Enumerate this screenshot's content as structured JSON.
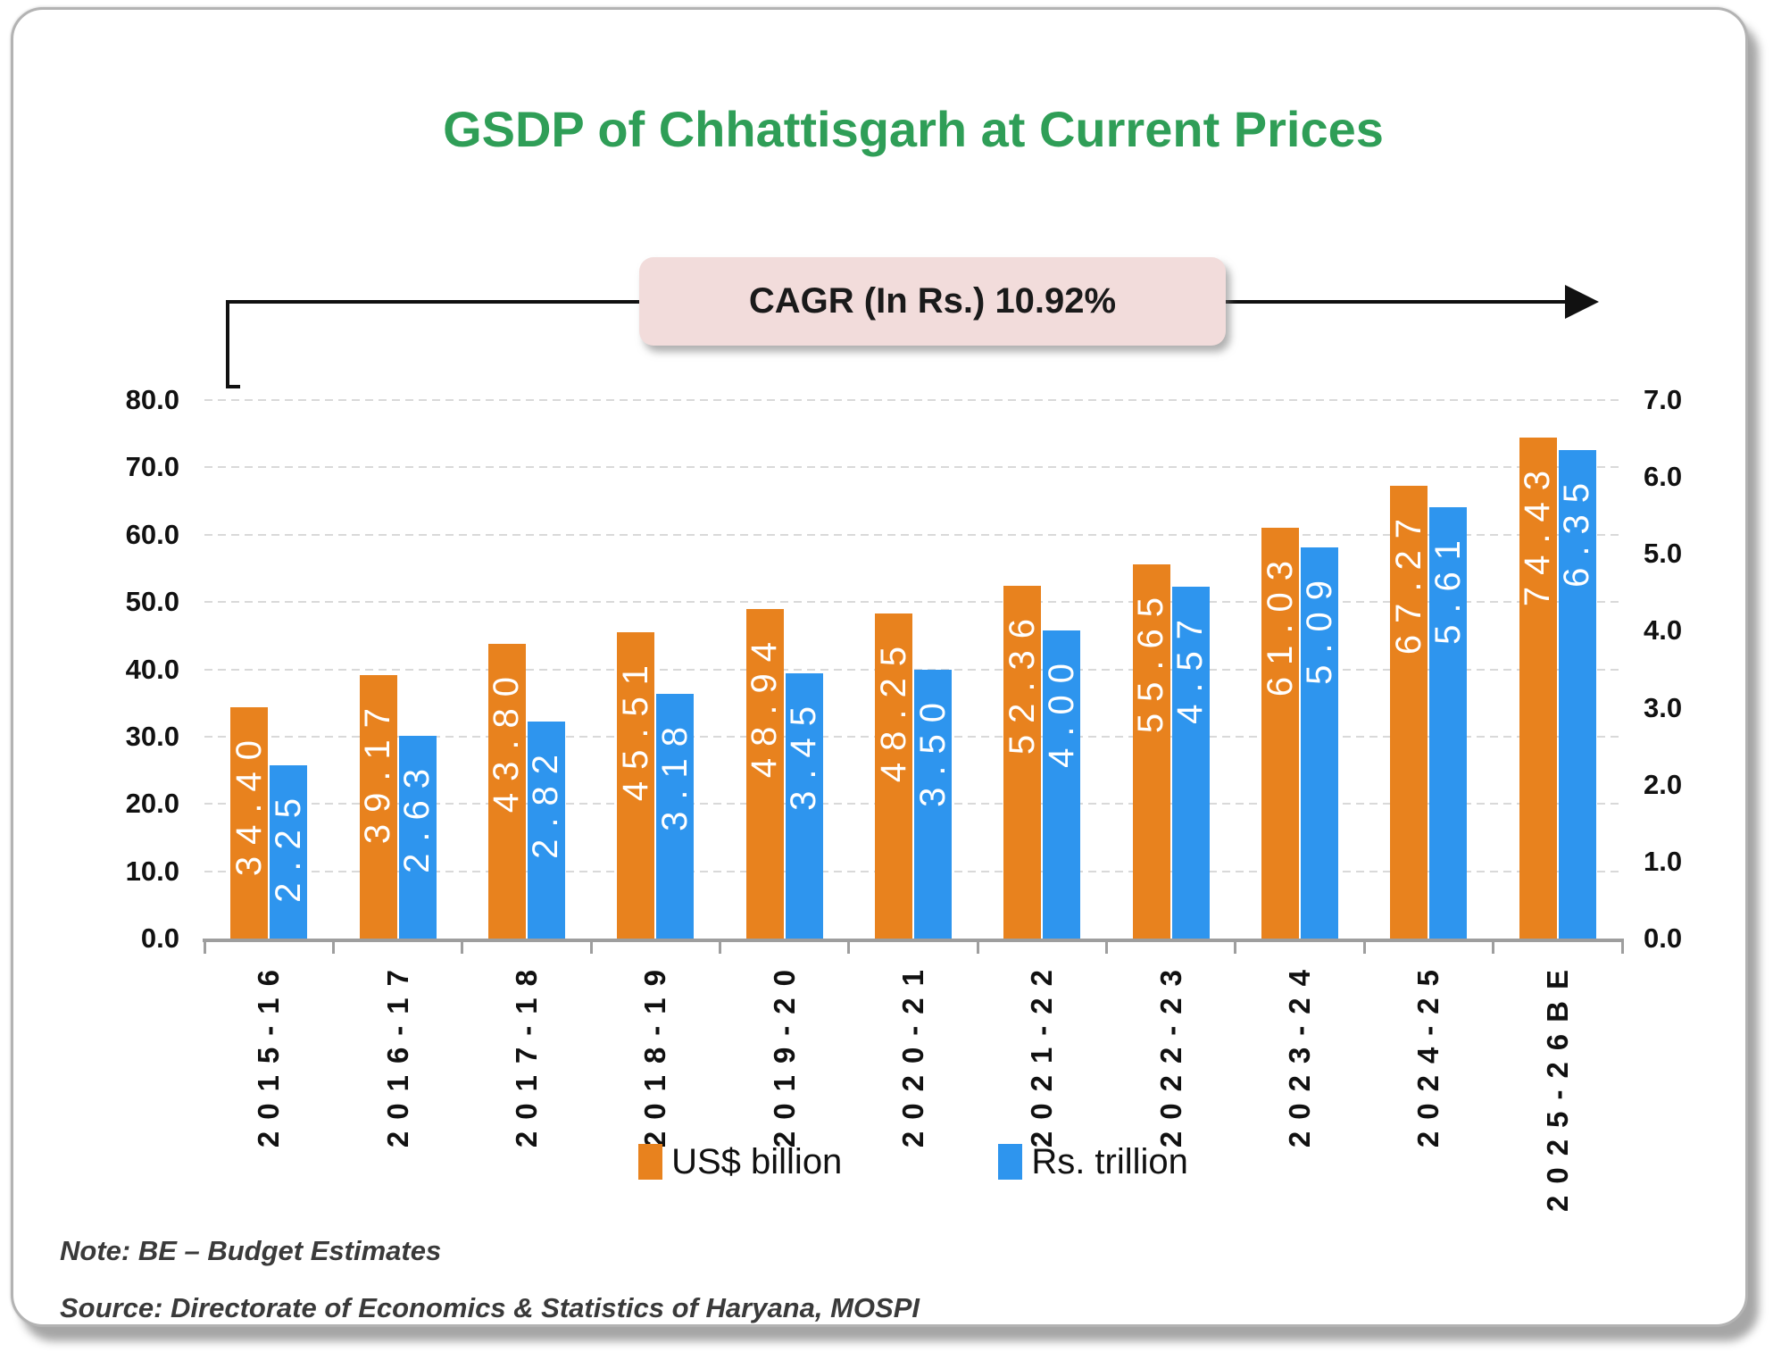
{
  "title": "GSDP of Chhattisgarh at Current Prices",
  "cagr_label": "CAGR (In Rs.) 10.92%",
  "legend": [
    {
      "label": "US$ billion",
      "color": "#E8821E"
    },
    {
      "label": "Rs. trillion",
      "color": "#2E95EE"
    }
  ],
  "notes": {
    "note": "Note: BE – Budget Estimates",
    "source": "Source: Directorate of Economics & Statistics of Haryana, MOSPI"
  },
  "colors": {
    "title_green": "#2F9E57",
    "bar_orange": "#E8821E",
    "bar_blue": "#2E95EE",
    "cagr_box_fill": "#F2DCDB",
    "gridline": "#D9D9D9",
    "axis_gray": "#9E9E9E",
    "value_label_text": "#FFFFFF"
  },
  "chart_data": {
    "type": "bar",
    "title": "GSDP of Chhattisgarh at Current Prices",
    "annotation": "CAGR (In Rs.) 10.92%",
    "categories": [
      "2015-16",
      "2016-17",
      "2017-18",
      "2018-19",
      "2019-20",
      "2020-21",
      "2021-22",
      "2022-23",
      "2023-24",
      "2024-25",
      "2025-26BE"
    ],
    "series": [
      {
        "name": "US$ billion",
        "axis": "left",
        "color": "#E8821E",
        "values": [
          34.4,
          39.17,
          43.8,
          45.51,
          48.94,
          48.25,
          52.36,
          55.65,
          61.03,
          67.27,
          74.43
        ]
      },
      {
        "name": "Rs. trillion",
        "axis": "right",
        "color": "#2E95EE",
        "values": [
          2.25,
          2.63,
          2.82,
          3.18,
          3.45,
          3.5,
          4.0,
          4.57,
          5.09,
          5.61,
          6.35
        ]
      }
    ],
    "left_axis": {
      "min": 0,
      "max": 80,
      "step": 10,
      "tick_labels": [
        "0.0",
        "10.0",
        "20.0",
        "30.0",
        "40.0",
        "50.0",
        "60.0",
        "70.0",
        "80.0"
      ]
    },
    "right_axis": {
      "min": 0,
      "max": 7,
      "step": 1,
      "tick_labels": [
        "0.0",
        "1.0",
        "2.0",
        "3.0",
        "4.0",
        "5.0",
        "6.0",
        "7.0"
      ]
    },
    "grid": "horizontal dashed",
    "legend_position": "bottom",
    "value_labels": "inside-top, rotated 90deg, white, 2 decimals"
  }
}
